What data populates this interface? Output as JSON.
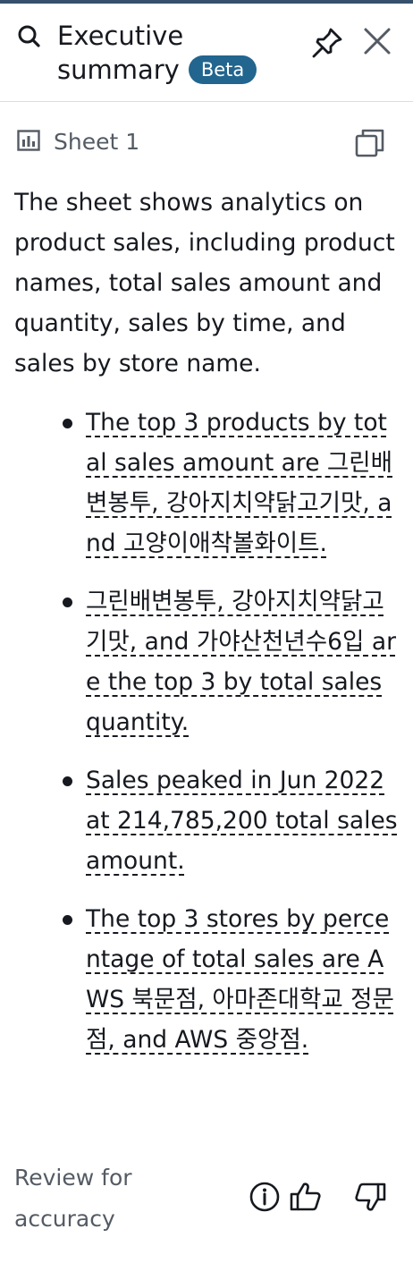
{
  "header": {
    "title": "Executive summary",
    "badge": "Beta",
    "icons": {
      "search": "search-icon",
      "pin": "pin-icon",
      "close": "close-icon"
    }
  },
  "sheet": {
    "label": "Sheet 1",
    "icons": {
      "sheet": "bar-chart-icon",
      "copy": "copy-icon"
    }
  },
  "summary": {
    "intro": "The sheet shows analytics on product sales, including product names, total sales amount and quantity, sales by time, and sales by store name.",
    "bullets": [
      "The top 3 products by total sales amount are 그린배변봉투, 강아지치약닭고기맛, and 고양이애착볼화이트.",
      "그린배변봉투, 강아지치약닭고기맛, and 가야산천년수6입 are the top 3 by total sales quantity.",
      "Sales peaked in Jun 2022 at 214,785,200 total sales amount.",
      "The top 3 stores by percentage of total sales are AWS 북문점, 아마존대학교 정문점, and AWS 중앙점."
    ]
  },
  "footer": {
    "review_text": "Review for accuracy",
    "icons": {
      "info": "info-icon",
      "thumbs_up": "thumbs-up-icon",
      "thumbs_down": "thumbs-down-icon"
    }
  },
  "colors": {
    "accent_bar": "#37506b",
    "badge_bg": "#22658e",
    "text": "#16191f",
    "muted": "#545b64"
  }
}
